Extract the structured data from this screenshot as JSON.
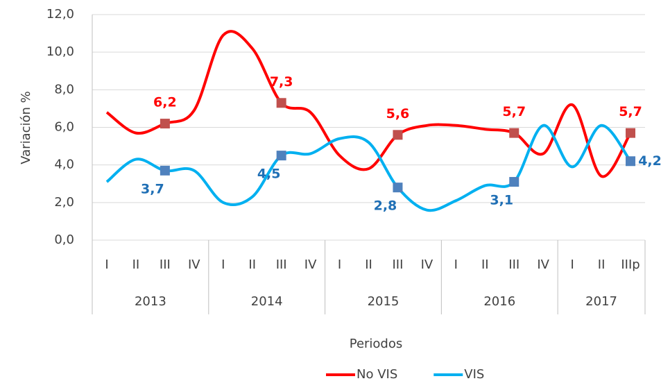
{
  "chart_data": {
    "type": "line",
    "x_label": "Periodos",
    "y_label": "Variación %",
    "categories": [
      "I",
      "II",
      "III",
      "IV",
      "I",
      "II",
      "III",
      "IV",
      "I",
      "II",
      "III",
      "IV",
      "I",
      "II",
      "III",
      "IV",
      "I",
      "II",
      "IIIp"
    ],
    "category_groups": [
      {
        "name": "2013",
        "count": 4
      },
      {
        "name": "2014",
        "count": 4
      },
      {
        "name": "2015",
        "count": 4
      },
      {
        "name": "2016",
        "count": 4
      },
      {
        "name": "2017",
        "count": 3
      }
    ],
    "series": [
      {
        "name": "No VIS",
        "color": "#ff0000",
        "marker_color": "#c0504d",
        "label_color": "#ff0000",
        "values": [
          6.8,
          5.7,
          6.2,
          6.9,
          10.9,
          10.2,
          7.3,
          6.8,
          4.5,
          3.8,
          5.6,
          6.1,
          6.1,
          5.9,
          5.7,
          4.6,
          7.2,
          3.4,
          5.7
        ],
        "value_labels": [
          null,
          null,
          "6,2",
          null,
          null,
          null,
          "7,3",
          null,
          null,
          null,
          "5,6",
          null,
          null,
          null,
          "5,7",
          null,
          null,
          null,
          "5,7"
        ]
      },
      {
        "name": "VIS",
        "color": "#00b0f0",
        "marker_color": "#4f81bd",
        "label_color": "#1f6fb5",
        "values": [
          3.1,
          4.3,
          3.7,
          3.7,
          2.0,
          2.3,
          4.5,
          4.6,
          5.4,
          5.2,
          2.8,
          1.6,
          2.1,
          2.9,
          3.1,
          6.1,
          3.9,
          6.1,
          4.2
        ],
        "value_labels": [
          null,
          null,
          "3,7",
          null,
          null,
          null,
          "4,5",
          null,
          null,
          null,
          "2,8",
          null,
          null,
          null,
          "3,1",
          null,
          null,
          null,
          "4,2"
        ]
      }
    ],
    "ylim": [
      0,
      12
    ],
    "yticks": [
      {
        "value": 0,
        "label": "0,0"
      },
      {
        "value": 2,
        "label": "2,0"
      },
      {
        "value": 4,
        "label": "4,0"
      },
      {
        "value": 6,
        "label": "6,0"
      },
      {
        "value": 8,
        "label": "8,0"
      },
      {
        "value": 10,
        "label": "10,0"
      },
      {
        "value": 12,
        "label": "12,0"
      }
    ],
    "grid": true,
    "legend": "bottom"
  }
}
